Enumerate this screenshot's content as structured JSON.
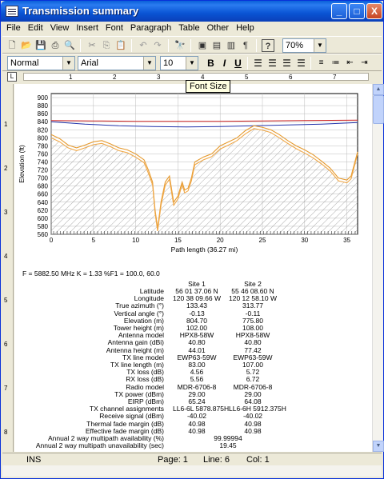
{
  "window": {
    "title": "Transmission summary",
    "min": "_",
    "max": "□",
    "close": "X"
  },
  "menu": [
    "File",
    "Edit",
    "View",
    "Insert",
    "Font",
    "Paragraph",
    "Table",
    "Other",
    "Help"
  ],
  "toolbar": {
    "zoom": "70%"
  },
  "format": {
    "style": "Normal",
    "font": "Arial",
    "size": "10",
    "bold": "B",
    "italic": "I",
    "underline": "U"
  },
  "tooltip": "Font Size",
  "ruler_h": [
    "1",
    "2",
    "3",
    "4",
    "5",
    "6",
    "7"
  ],
  "ruler_v": [
    "1",
    "2",
    "3",
    "4",
    "5",
    "6",
    "7",
    "8"
  ],
  "chart_data": {
    "type": "line",
    "xlabel": "Path length (36.27 mi)",
    "ylabel": "Elevation (ft)",
    "xlim": [
      0,
      36.27
    ],
    "ylim": [
      560,
      910
    ],
    "xticks": [
      0,
      5,
      10,
      15,
      20,
      25,
      30,
      35
    ],
    "yticks": [
      560,
      580,
      600,
      620,
      640,
      660,
      680,
      700,
      720,
      740,
      760,
      780,
      800,
      820,
      840,
      860,
      880,
      900
    ],
    "grid": true,
    "series": [
      {
        "name": "",
        "color": "#cc2222",
        "x": [
          0,
          5,
          10,
          15,
          20,
          25,
          30,
          36.27
        ],
        "y": [
          843,
          842,
          841,
          841,
          841,
          842,
          843,
          844
        ]
      },
      {
        "name": "",
        "color": "#2233aa",
        "x": [
          0,
          4,
          8,
          12,
          16,
          20,
          24,
          28,
          32,
          36.27
        ],
        "y": [
          840,
          834,
          830,
          828,
          827,
          828,
          830,
          832,
          834,
          838
        ]
      },
      {
        "name": "",
        "color": "#e69a2e",
        "x": [
          0,
          1,
          2,
          3,
          4,
          5,
          6,
          7,
          8,
          9,
          10,
          11,
          11.5,
          12,
          12.3,
          12.6,
          13,
          13.5,
          14,
          14.5,
          15,
          15.5,
          15.8,
          16.2,
          16.6,
          17,
          18,
          19,
          20,
          21,
          22,
          23,
          24,
          25,
          26,
          27,
          28,
          29,
          30,
          31,
          32,
          33,
          34,
          35,
          35.5,
          36.27
        ],
        "y": [
          808,
          798,
          782,
          775,
          782,
          790,
          793,
          785,
          775,
          770,
          760,
          745,
          720,
          690,
          620,
          575,
          640,
          690,
          705,
          640,
          655,
          690,
          670,
          675,
          700,
          740,
          752,
          760,
          780,
          790,
          800,
          818,
          830,
          826,
          820,
          808,
          793,
          780,
          770,
          758,
          742,
          725,
          700,
          695,
          705,
          765
        ]
      },
      {
        "name": "",
        "color": "#f0a848",
        "x": [
          0,
          1,
          2,
          3,
          4,
          5,
          6,
          7,
          8,
          9,
          10,
          11,
          11.5,
          12,
          12.3,
          12.6,
          13,
          13.5,
          14,
          14.5,
          15,
          15.5,
          15.8,
          16.2,
          16.6,
          17,
          18,
          19,
          20,
          21,
          22,
          23,
          24,
          25,
          26,
          27,
          28,
          29,
          30,
          31,
          32,
          33,
          34,
          35,
          35.5,
          36.27
        ],
        "y": [
          800,
          790,
          775,
          768,
          775,
          783,
          786,
          778,
          768,
          763,
          752,
          738,
          712,
          683,
          612,
          568,
          632,
          682,
          697,
          632,
          648,
          683,
          663,
          668,
          693,
          733,
          745,
          753,
          772,
          782,
          793,
          810,
          823,
          819,
          813,
          800,
          786,
          773,
          762,
          750,
          735,
          718,
          693,
          688,
          698,
          760
        ]
      }
    ]
  },
  "summary": {
    "header": "F = 5882.50 MHz  K = 1.33  %F1 = 100.0, 60.0",
    "site1": "Site 1",
    "site2": "Site 2",
    "rows": [
      {
        "label": "Latitude",
        "v1": "56 01 37.06 N",
        "v2": "55 46 08.60 N"
      },
      {
        "label": "Longitude",
        "v1": "120 38 09.66 W",
        "v2": "120 12 58.10 W"
      },
      {
        "label": "True azimuth (°)",
        "v1": "133.43",
        "v2": "313.77"
      },
      {
        "label": "Vertical angle (°)",
        "v1": "-0.13",
        "v2": "-0.11"
      },
      {
        "label": "Elevation (m)",
        "v1": "804.70",
        "v2": "775.80"
      },
      {
        "label": "Tower height (m)",
        "v1": "102.00",
        "v2": "108.00"
      },
      {
        "label": "Antenna model",
        "v1": "HPX8-58W",
        "v2": "HPX8-58W"
      },
      {
        "label": "Antenna gain (dBi)",
        "v1": "40.80",
        "v2": "40.80"
      },
      {
        "label": "Antenna height (m)",
        "v1": "44.01",
        "v2": "77.42"
      },
      {
        "label": "TX line model",
        "v1": "EWP63-59W",
        "v2": "EWP63-59W"
      },
      {
        "label": "TX line length (m)",
        "v1": "83.00",
        "v2": "107.00"
      },
      {
        "label": "TX loss (dB)",
        "v1": "4.56",
        "v2": "5.72"
      },
      {
        "label": "RX loss (dB)",
        "v1": "5.56",
        "v2": "6.72"
      },
      {
        "label": "Radio model",
        "v1": "MDR-6706-8",
        "v2": "MDR-6706-8"
      },
      {
        "label": "TX power (dBm)",
        "v1": "29.00",
        "v2": "29.00"
      },
      {
        "label": "EIRP (dBm)",
        "v1": "65.24",
        "v2": "64.08"
      },
      {
        "label": "TX channel assignments",
        "v1": "LL6-6L 5878.875H",
        "v2": "LL6-6H 5912.375H"
      },
      {
        "label": "Receive signal (dBm)",
        "v1": "-40.02",
        "v2": "-40.02"
      },
      {
        "label": "Thermal fade margin (dB)",
        "v1": "40.98",
        "v2": "40.98"
      },
      {
        "label": "Effective fade margin (dB)",
        "v1": "40.98",
        "v2": "40.98"
      }
    ],
    "shared_rows": [
      {
        "label": "Annual 2 way multipath availability (%)",
        "value": "99.99994"
      },
      {
        "label": "Annual 2 way multipath unavailability (sec)",
        "value": "19.45"
      }
    ]
  },
  "status": {
    "mode": "INS",
    "page": "Page: 1",
    "line": "Line: 6",
    "col": "Col: 1"
  }
}
